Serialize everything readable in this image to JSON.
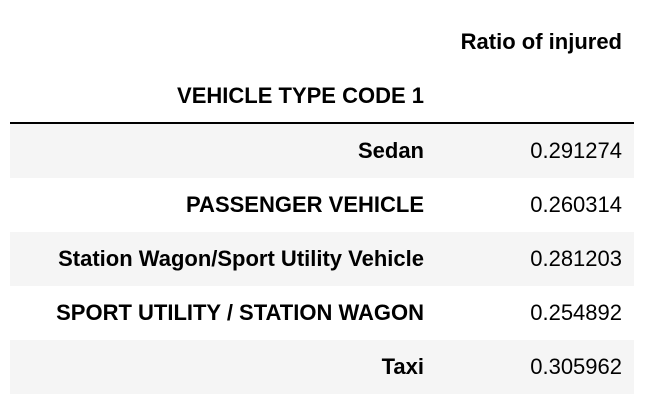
{
  "table": {
    "column_header": "Ratio of injured",
    "index_name": "VEHICLE TYPE CODE 1",
    "rows": [
      {
        "label": "Sedan",
        "value": "0.291274"
      },
      {
        "label": "PASSENGER VEHICLE",
        "value": "0.260314"
      },
      {
        "label": "Station Wagon/Sport Utility Vehicle",
        "value": "0.281203"
      },
      {
        "label": "SPORT UTILITY / STATION WAGON",
        "value": "0.254892"
      },
      {
        "label": "Taxi",
        "value": "0.305962"
      }
    ]
  }
}
